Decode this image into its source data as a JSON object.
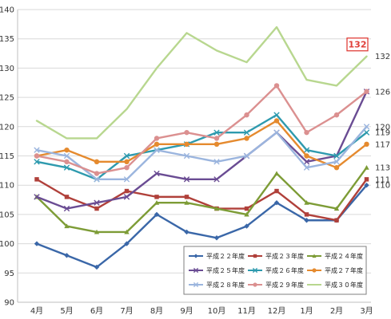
{
  "chart_data": {
    "type": "line",
    "title": "",
    "xlabel": "",
    "ylabel": "",
    "ylim": [
      90,
      140
    ],
    "yticks": [
      90,
      95,
      100,
      105,
      110,
      115,
      120,
      125,
      130,
      135,
      140
    ],
    "grid": "horizontal",
    "legend_position": "bottom-right",
    "categories": [
      "4月",
      "5月",
      "6月",
      "7月",
      "8月",
      "9月",
      "10月",
      "11月",
      "12月",
      "1月",
      "2月",
      "3月"
    ],
    "series": [
      {
        "name": "平成２２年度",
        "color": "#3a67a8",
        "marker": "diamond",
        "values": [
          100,
          98,
          96,
          100,
          105,
          102,
          101,
          103,
          107,
          104,
          104,
          110
        ]
      },
      {
        "name": "平成２３年度",
        "color": "#b0403a",
        "marker": "square",
        "values": [
          111,
          108,
          106,
          109,
          108,
          108,
          106,
          106,
          109,
          105,
          104,
          111
        ]
      },
      {
        "name": "平成２４年度",
        "color": "#7d9c36",
        "marker": "triangle",
        "values": [
          108,
          103,
          102,
          102,
          107,
          107,
          106,
          105,
          112,
          107,
          106,
          113
        ]
      },
      {
        "name": "平成２５年度",
        "color": "#6a4c93",
        "marker": "x",
        "values": [
          108,
          106,
          107,
          108,
          112,
          111,
          111,
          115,
          119,
          114,
          115,
          126
        ]
      },
      {
        "name": "平成２６年度",
        "color": "#2e9aae",
        "marker": "x",
        "values": [
          114,
          113,
          111,
          115,
          116,
          117,
          119,
          119,
          122,
          116,
          115,
          119
        ]
      },
      {
        "name": "平成２７年度",
        "color": "#e58a2e",
        "marker": "circle",
        "values": [
          115,
          116,
          114,
          114,
          117,
          117,
          117,
          118,
          121,
          115,
          113,
          117
        ]
      },
      {
        "name": "平成２８年度",
        "color": "#9bb5de",
        "marker": "x",
        "values": [
          116,
          115,
          111,
          111,
          116,
          115,
          114,
          115,
          119,
          113,
          114,
          120
        ]
      },
      {
        "name": "平成２９年度",
        "color": "#db9090",
        "marker": "circle",
        "values": [
          115,
          114,
          112,
          113,
          118,
          119,
          118,
          122,
          127,
          119,
          122,
          126
        ]
      },
      {
        "name": "平成３０年度",
        "color": "#b8d78f",
        "marker": "none",
        "values": [
          121,
          118,
          118,
          123,
          130,
          136,
          133,
          131,
          137,
          128,
          127,
          132
        ]
      }
    ],
    "end_labels": [
      {
        "text": "132",
        "value": 132,
        "highlight": true
      },
      {
        "text": "126",
        "value": 126
      },
      {
        "text": "120",
        "value": 120
      },
      {
        "text": "119",
        "value": 119
      },
      {
        "text": "117",
        "value": 117
      },
      {
        "text": "113",
        "value": 113
      },
      {
        "text": "111",
        "value": 111
      },
      {
        "text": "110",
        "value": 110
      }
    ],
    "callout": {
      "text": "132",
      "color": "#e0403a"
    }
  }
}
